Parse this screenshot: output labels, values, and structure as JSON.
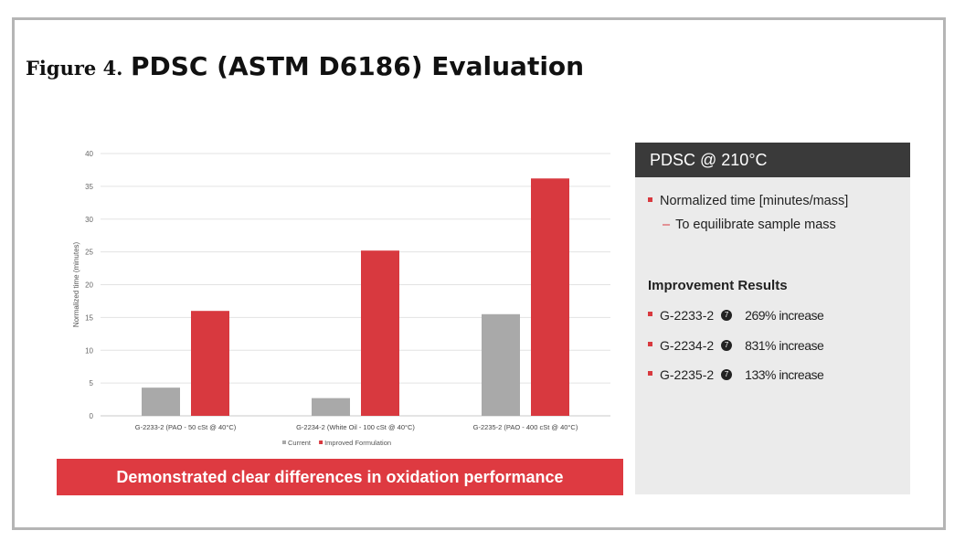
{
  "figure": {
    "label": "Figure 4.",
    "title": "PDSC (ASTM D6186) Evaluation"
  },
  "chart_data": {
    "type": "bar",
    "categories": [
      "G-2233-2 (PAO - 50 cSt @ 40°C)",
      "G-2234-2 (White Oil - 100 cSt @ 40°C)",
      "G-2235-2 (PAO - 400 cSt @ 40°C)"
    ],
    "series": [
      {
        "name": "Current",
        "values": [
          4.3,
          2.7,
          15.5
        ],
        "color": "#a9a9a9"
      },
      {
        "name": "Improved Formulation",
        "values": [
          16,
          25.2,
          36.2
        ],
        "color": "#d8393f"
      }
    ],
    "xlabel": "",
    "ylabel": "Normalized time (minutes)",
    "ylim": [
      0,
      40
    ],
    "yticks": [
      0,
      5,
      10,
      15,
      20,
      25,
      30,
      35,
      40
    ],
    "grid": true,
    "legend_position": "bottom"
  },
  "banner": {
    "text": "Demonstrated clear differences in oxidation performance",
    "color": "#de3a41"
  },
  "panel": {
    "header": "PDSC @ 210°C",
    "bullet": "Normalized time [minutes/mass]",
    "sub_bullet": "To equilibrate sample mass",
    "results_title": "Improvement Results",
    "results": [
      {
        "sample": "G-2233-2",
        "marker": "7",
        "increase": "269% increase"
      },
      {
        "sample": "G-2234-2",
        "marker": "7",
        "increase": "831% increase"
      },
      {
        "sample": "G-2235-2",
        "marker": "7",
        "increase": "133% increase"
      }
    ]
  }
}
